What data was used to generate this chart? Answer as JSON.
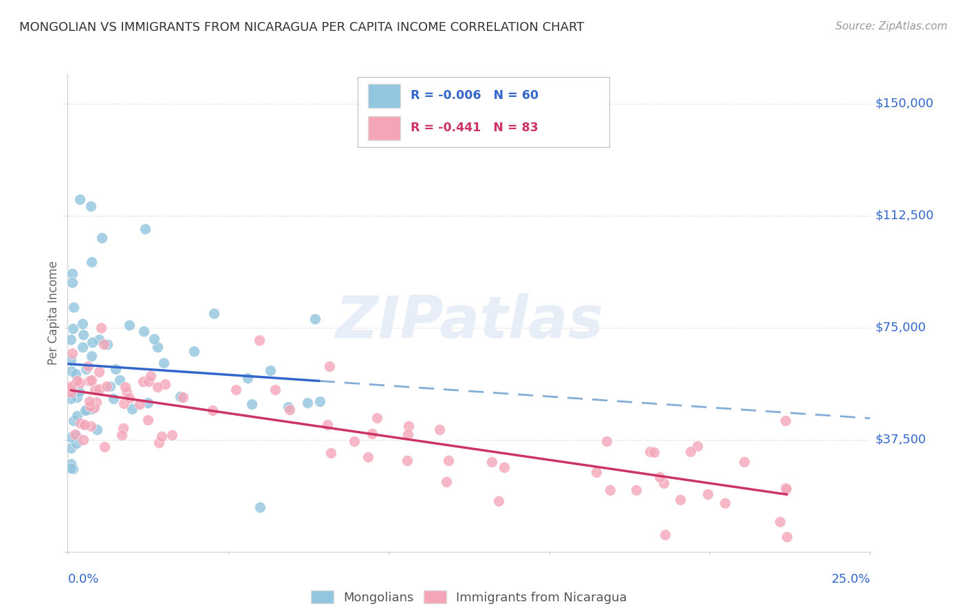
{
  "title": "MONGOLIAN VS IMMIGRANTS FROM NICARAGUA PER CAPITA INCOME CORRELATION CHART",
  "source": "Source: ZipAtlas.com",
  "ylabel": "Per Capita Income",
  "yticks": [
    0,
    37500,
    75000,
    112500,
    150000
  ],
  "ytick_labels": [
    "",
    "$37,500",
    "$75,000",
    "$112,500",
    "$150,000"
  ],
  "xlim": [
    0.0,
    0.25
  ],
  "ylim": [
    0,
    160000
  ],
  "legend_labels": [
    "Mongolians",
    "Immigrants from Nicaragua"
  ],
  "legend_r": [
    "-0.006",
    "-0.441"
  ],
  "legend_n": [
    "60",
    "83"
  ],
  "blue_color": "#92c5de",
  "pink_color": "#f4a6b8",
  "blue_line_color": "#3366cc",
  "pink_line_color": "#cc3366",
  "dashed_blue_color": "#6699cc",
  "watermark_color": "#e8eef8",
  "grid_color": "#cccccc",
  "title_color": "#333333",
  "source_color": "#999999",
  "label_color": "#3366cc",
  "ylabel_color": "#666666"
}
